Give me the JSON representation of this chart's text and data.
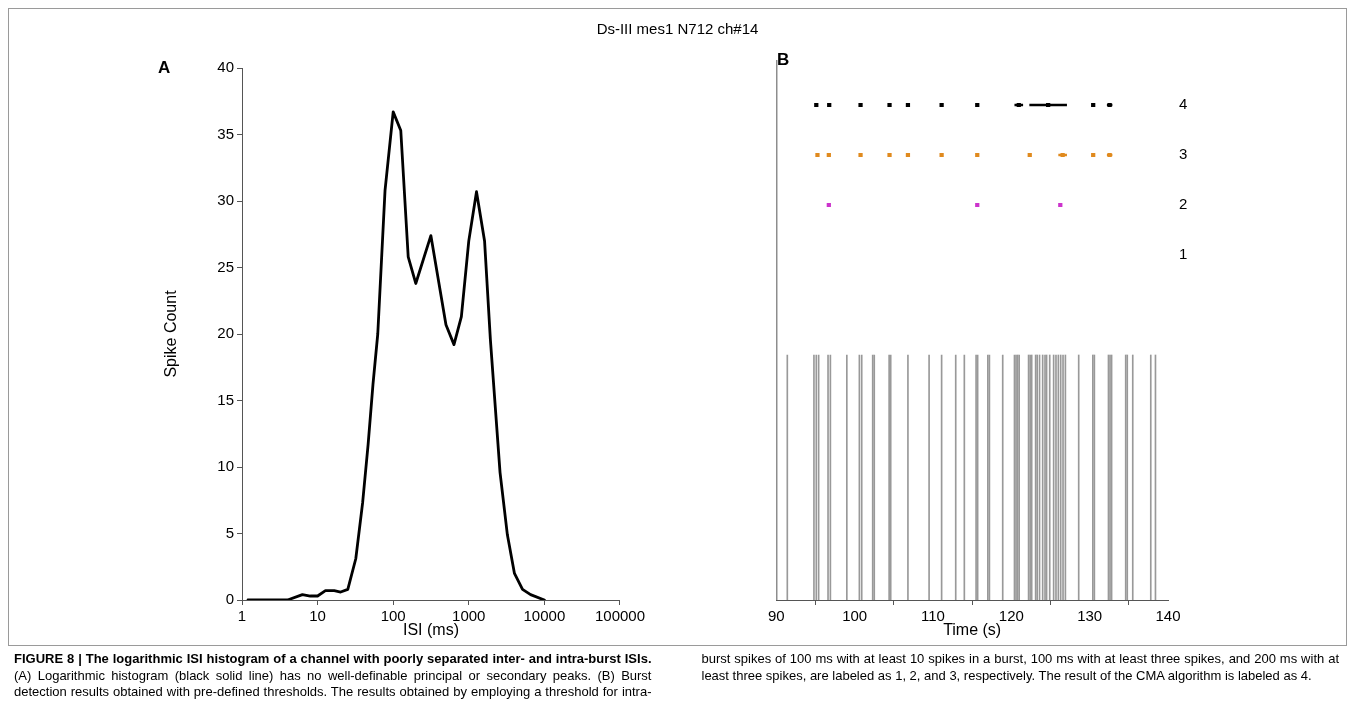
{
  "chart_data": [
    {
      "type": "line",
      "title": "Ds-III mes1 N712 ch#14",
      "xlabel": "ISI (ms)",
      "ylabel": "Spike Count",
      "log": "x",
      "color": "#000000",
      "annotations": [
        "A",
        "FIGURE 8 | The logarithmic ISI histogram of a channel with poorly separated inter- and intra-burst ISIs.",
        "(A) Logarithmic histogram (black solid line) has no well-definable principal or secondary peaks.",
        "(B) Burst detection results obtained with pre-defined thresholds. The results obtained by employing a threshold for intra-burst spikes of 100 ms with at least 10 spikes in a burst, 100 ms with at least three spikes, and 200 ms with at least three spikes, are labeled as 1, 2, and 3, respectively. The result of the CMA algorithm is labeled as 4."
      ],
      "x": [
        1.2,
        4,
        6.3,
        8,
        10,
        12.7,
        16.6,
        20.2,
        25.1,
        32,
        39.4,
        46.6,
        54,
        62.5,
        78,
        100,
        126,
        158,
        199,
        315,
        499,
        637,
        798,
        1000,
        1265,
        1617,
        1930,
        2590,
        3240,
        4020,
        5140,
        6570,
        10000
      ],
      "values": [
        0,
        0,
        0.4,
        0.3,
        0.3,
        0.7,
        0.7,
        0.6,
        0.8,
        3.1,
        7.3,
        11.7,
        16.2,
        20.0,
        30.8,
        36.7,
        35.3,
        25.8,
        23.8,
        27.4,
        20.7,
        19.2,
        21.3,
        27.0,
        30.7,
        27.0,
        19.6,
        9.6,
        4.9,
        2.0,
        0.8,
        0.4,
        0
      ],
      "xlim": [
        1,
        100000
      ],
      "xticks": [
        1,
        10,
        100,
        1000,
        10000,
        100000
      ],
      "ylim": [
        0,
        40
      ],
      "yticks": [
        0,
        5,
        10,
        15,
        20,
        25,
        30,
        35,
        40
      ]
    },
    {
      "type": "scatter",
      "marker": "square",
      "xlabel": "Time (s)",
      "annotations": [
        "B"
      ],
      "xlim": [
        90,
        140
      ],
      "xticks": [
        90,
        100,
        110,
        120,
        130,
        140
      ],
      "y2lim": [
        -5.9,
        4.9
      ],
      "y2ticks": [
        1,
        2,
        3,
        4
      ],
      "series": [
        {
          "type": "bar",
          "axis": "y2",
          "color": "#999999",
          "x": [
            91.4,
            94.8,
            95.1,
            95.4,
            96.6,
            96.9,
            99.0,
            100.6,
            100.9,
            102.3,
            102.5,
            104.4,
            104.6,
            106.8,
            109.5,
            111.1,
            112.9,
            114.0,
            115.5,
            115.7,
            117.0,
            117.2,
            118.9,
            120.4,
            120.6,
            120.8,
            121.0,
            122.2,
            122.4,
            122.6,
            123.1,
            123.3,
            123.6,
            124.0,
            124.3,
            124.5,
            124.9,
            125.4,
            125.7,
            126.0,
            126.3,
            126.6,
            126.9,
            128.6,
            130.4,
            130.6,
            132.4,
            132.6,
            132.8,
            134.6,
            134.8,
            135.5,
            137.8,
            138.4
          ],
          "base": [
            -5.9,
            -5.9,
            -5.9,
            -5.9,
            -5.9,
            -5.9,
            -5.9,
            -5.9,
            -5.9,
            -5.9,
            -5.9,
            -5.9,
            -5.9,
            -5.9,
            -5.9,
            -5.9,
            -5.9,
            -5.9,
            -5.9,
            -5.9,
            -5.9,
            -5.9,
            -5.9,
            -5.9,
            -5.9,
            -5.9,
            -5.9,
            -5.9,
            -5.9,
            -5.9,
            -5.9,
            -5.9,
            -5.9,
            -5.9,
            -5.9,
            -5.9,
            -5.9,
            -5.9,
            -5.9,
            -5.9,
            -5.9,
            -5.9,
            -5.9,
            -5.9,
            -5.9,
            -5.9,
            -5.9,
            -5.9,
            -5.9,
            -5.9,
            -5.9,
            -5.9,
            -5.9,
            -5.9
          ],
          "values": [
            4.9,
            4.9,
            4.9,
            4.9,
            4.9,
            4.9,
            4.9,
            4.9,
            4.9,
            4.9,
            4.9,
            4.9,
            4.9,
            4.9,
            4.9,
            4.9,
            4.9,
            4.9,
            4.9,
            4.9,
            4.9,
            4.9,
            4.9,
            4.9,
            4.9,
            4.9,
            4.9,
            4.9,
            4.9,
            4.9,
            4.9,
            4.9,
            4.9,
            4.9,
            4.9,
            4.9,
            4.9,
            4.9,
            4.9,
            4.9,
            4.9,
            4.9,
            4.9,
            4.9,
            4.9,
            4.9,
            4.9,
            4.9,
            4.9,
            4.9,
            4.9,
            4.9,
            4.9,
            4.9
          ]
        },
        {
          "axis": "y2",
          "color": "#000000",
          "x": [
            95.1,
            96.75,
            100.75,
            104.45,
            106.8,
            111.1,
            115.65,
            120.95,
            124.7,
            130.45,
            132.55
          ],
          "values": [
            4,
            4,
            4,
            4,
            4,
            4,
            4,
            4,
            4,
            4,
            4
          ],
          "xerrors": [
            null,
            null,
            null,
            null,
            null,
            null,
            null,
            0.55,
            2.4,
            null,
            0.35
          ]
        },
        {
          "axis": "y2",
          "color": "#e08a1e",
          "x": [
            95.25,
            96.7,
            100.75,
            104.45,
            106.8,
            111.1,
            115.65,
            122.35,
            126.55,
            130.45,
            132.55
          ],
          "values": [
            3,
            3,
            3,
            3,
            3,
            3,
            3,
            3,
            3,
            3,
            3
          ],
          "xerrors": [
            null,
            null,
            null,
            null,
            null,
            null,
            null,
            null,
            0.55,
            null,
            0.35
          ]
        },
        {
          "axis": "y2",
          "color": "#cc33cc",
          "x": [
            96.7,
            115.65,
            126.25
          ],
          "values": [
            2,
            2,
            2
          ]
        }
      ]
    }
  ]
}
